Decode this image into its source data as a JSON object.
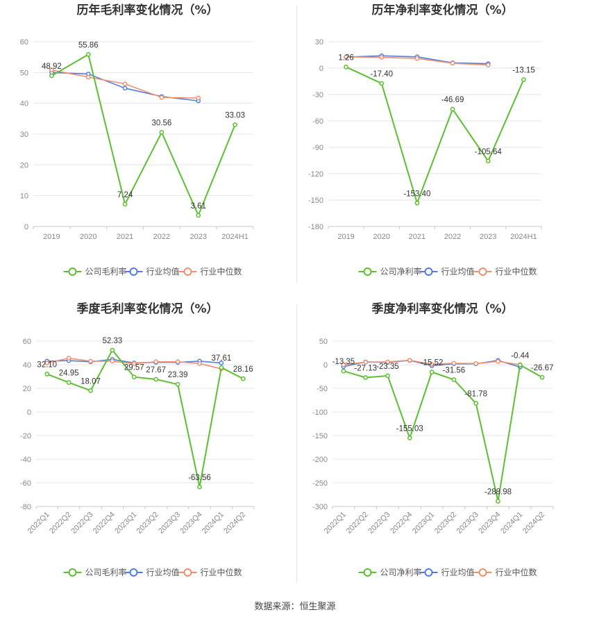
{
  "source_label": "数据来源：恒生聚源",
  "colors": {
    "company": "#5ac02d",
    "avg": "#4e7fe0",
    "median": "#f08f6c"
  },
  "chart_data": [
    {
      "type": "line",
      "title": "历年毛利率变化情况（%）",
      "categories": [
        "2019",
        "2020",
        "2021",
        "2022",
        "2023",
        "2024H1"
      ],
      "ylim": [
        0,
        60
      ],
      "yticks": [
        0,
        10,
        20,
        30,
        40,
        50,
        60
      ],
      "grid": true,
      "legend": "bottom",
      "series": [
        {
          "name": "公司毛利率",
          "key": "company",
          "values": [
            48.92,
            55.86,
            7.24,
            30.56,
            3.61,
            33.03
          ],
          "labels": [
            "48.92",
            "55.86",
            "7.24",
            "30.56",
            "3.61",
            "33.03"
          ]
        },
        {
          "name": "行业均值",
          "key": "avg",
          "values": [
            50.0,
            49.5,
            44.9,
            42.2,
            40.8,
            null
          ]
        },
        {
          "name": "行业中位数",
          "key": "median",
          "values": [
            50.8,
            48.5,
            46.3,
            41.9,
            41.7,
            null
          ]
        }
      ]
    },
    {
      "type": "line",
      "title": "历年净利率变化情况（%）",
      "categories": [
        "2019",
        "2020",
        "2021",
        "2022",
        "2023",
        "2024H1"
      ],
      "ylim": [
        -180,
        30
      ],
      "yticks": [
        -180,
        -150,
        -120,
        -90,
        -60,
        -30,
        0,
        30
      ],
      "grid": true,
      "legend": "bottom",
      "series": [
        {
          "name": "公司净利率",
          "key": "company",
          "values": [
            1.26,
            -17.4,
            -153.4,
            -46.69,
            -105.64,
            -13.15
          ],
          "labels": [
            "1.26",
            "-17.40",
            "-153.40",
            "-46.69",
            "-105.64",
            "-13.15"
          ]
        },
        {
          "name": "行业均值",
          "key": "avg",
          "values": [
            12.5,
            14.0,
            12.8,
            6.0,
            5.0,
            null
          ]
        },
        {
          "name": "行业中位数",
          "key": "median",
          "values": [
            12.8,
            12.2,
            11.0,
            5.5,
            3.5,
            null
          ]
        }
      ]
    },
    {
      "type": "line",
      "title": "季度毛利率变化情况（%）",
      "categories": [
        "2022Q1",
        "2022Q2",
        "2022Q3",
        "2022Q4",
        "2023Q1",
        "2023Q2",
        "2023Q3",
        "2023Q4",
        "2024Q1",
        "2024Q2"
      ],
      "ylim": [
        -80,
        60
      ],
      "yticks": [
        -80,
        -60,
        -40,
        -20,
        0,
        20,
        40,
        60
      ],
      "grid": true,
      "legend": "bottom",
      "series": [
        {
          "name": "公司毛利率",
          "key": "company",
          "values": [
            32.1,
            24.95,
            18.07,
            52.33,
            29.57,
            27.67,
            23.39,
            -63.56,
            37.61,
            28.16
          ],
          "labels": [
            "32.10",
            "24.95",
            "18.07",
            "52.33",
            "29.57",
            "27.67",
            "23.39",
            "-63.56",
            "37.61",
            "28.16"
          ]
        },
        {
          "name": "行业均值",
          "key": "avg",
          "values": [
            43.0,
            43.5,
            42.5,
            44.5,
            41.5,
            42.0,
            42.0,
            43.0,
            41.5,
            null
          ]
        },
        {
          "name": "行业中位数",
          "key": "median",
          "values": [
            41.5,
            45.5,
            43.0,
            43.0,
            41.0,
            42.5,
            42.5,
            41.0,
            36.5,
            null
          ]
        }
      ]
    },
    {
      "type": "line",
      "title": "季度净利率变化情况（%）",
      "categories": [
        "2022Q1",
        "2022Q2",
        "2022Q3",
        "2022Q4",
        "2023Q1",
        "2023Q2",
        "2023Q3",
        "2023Q4",
        "2024Q1",
        "2024Q2"
      ],
      "ylim": [
        -300,
        50
      ],
      "yticks": [
        -300,
        -250,
        -200,
        -150,
        -100,
        -50,
        0,
        50
      ],
      "grid": true,
      "legend": "bottom",
      "series": [
        {
          "name": "公司净利率",
          "key": "company",
          "values": [
            -13.35,
            -27.13,
            -23.35,
            -155.03,
            -15.52,
            -31.56,
            -81.78,
            -288.98,
            -0.44,
            -26.67
          ],
          "labels": [
            "-13.35",
            "-27.13",
            "-23.35",
            "-155.03",
            "-15.52",
            "-31.56",
            "-81.78",
            "-288.98",
            "-0.44",
            "-26.67"
          ]
        },
        {
          "name": "行业均值",
          "key": "avg",
          "values": [
            -4.0,
            6.0,
            5.0,
            9.0,
            -2.0,
            2.0,
            2.0,
            9.0,
            -5.0,
            null
          ]
        },
        {
          "name": "行业中位数",
          "key": "median",
          "values": [
            0.0,
            5.5,
            6.0,
            9.5,
            1.0,
            3.0,
            2.5,
            7.0,
            0.0,
            null
          ]
        }
      ]
    }
  ]
}
